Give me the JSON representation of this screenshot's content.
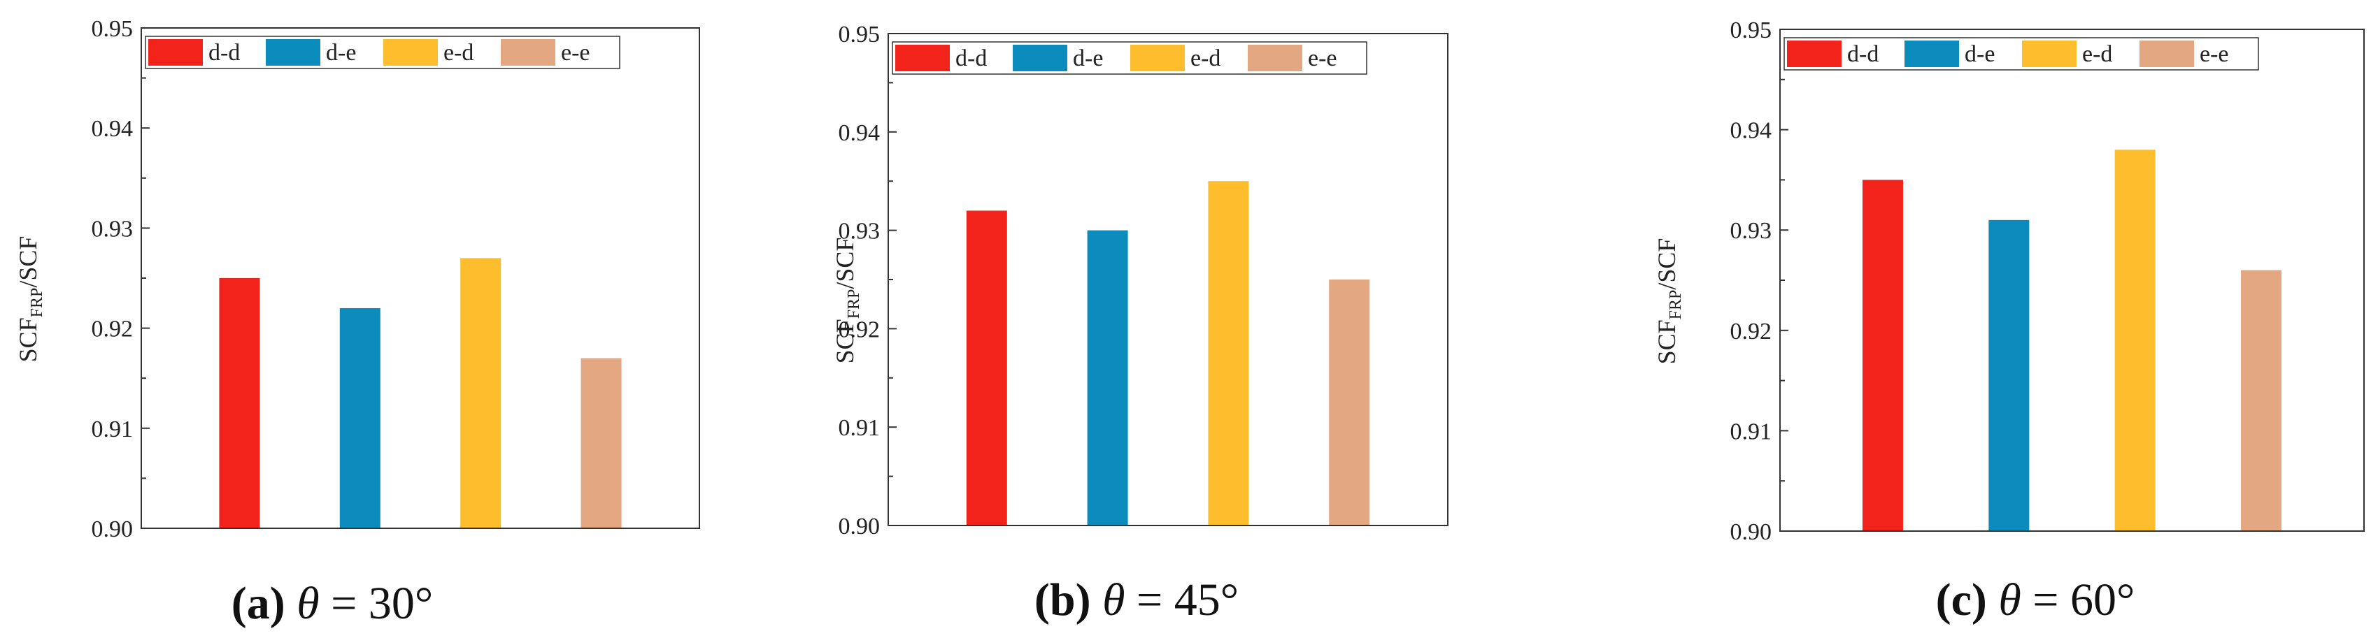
{
  "chart_data": [
    {
      "type": "bar",
      "categories": [
        "d-d",
        "d-e",
        "e-d",
        "e-e"
      ],
      "values": [
        0.925,
        0.922,
        0.927,
        0.917
      ],
      "colors": [
        "#f2231b",
        "#0b8cbd",
        "#fdbd2c",
        "#e3a882"
      ],
      "legend": [
        "d-d",
        "d-e",
        "e-d",
        "e-e"
      ],
      "ylabel": {
        "main": "SCF",
        "sub": "FRP",
        "tail": "/SCF"
      },
      "ylim": [
        0.9,
        0.95
      ],
      "yticks": [
        "0.90",
        "0.91",
        "0.92",
        "0.93",
        "0.94",
        "0.95"
      ],
      "caption": {
        "letter": "(a)",
        "theta": "θ",
        "rest": " = 30°"
      }
    },
    {
      "type": "bar",
      "categories": [
        "d-d",
        "d-e",
        "e-d",
        "e-e"
      ],
      "values": [
        0.932,
        0.93,
        0.935,
        0.925
      ],
      "colors": [
        "#f2231b",
        "#0b8cbd",
        "#fdbd2c",
        "#e3a882"
      ],
      "legend": [
        "d-d",
        "d-e",
        "e-d",
        "e-e"
      ],
      "ylabel": {
        "main": "SCF",
        "sub": "FRP",
        "tail": "/SCF"
      },
      "ylim": [
        0.9,
        0.95
      ],
      "yticks": [
        "0.90",
        "0.91",
        "0.92",
        "0.93",
        "0.94",
        "0.95"
      ],
      "caption": {
        "letter": "(b)",
        "theta": "θ",
        "rest": " = 45°"
      }
    },
    {
      "type": "bar",
      "categories": [
        "d-d",
        "d-e",
        "e-d",
        "e-e"
      ],
      "values": [
        0.935,
        0.931,
        0.938,
        0.926
      ],
      "colors": [
        "#f2231b",
        "#0b8cbd",
        "#fdbd2c",
        "#e3a882"
      ],
      "legend": [
        "d-d",
        "d-e",
        "e-d",
        "e-e"
      ],
      "ylabel": {
        "main": "SCF",
        "sub": "FRP",
        "tail": "/SCF"
      },
      "ylim": [
        0.9,
        0.95
      ],
      "yticks": [
        "0.90",
        "0.91",
        "0.92",
        "0.93",
        "0.94",
        "0.95"
      ],
      "caption": {
        "letter": "(c)",
        "theta": "θ",
        "rest": " = 60°"
      }
    }
  ]
}
